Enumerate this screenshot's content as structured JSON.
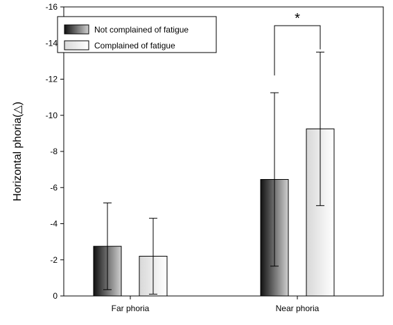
{
  "chart_data": {
    "type": "bar",
    "categories": [
      "Far phoria",
      "Near phoria"
    ],
    "series": [
      {
        "name": "Not complained of fatigue",
        "values": [
          -2.75,
          -6.45
        ],
        "error": [
          2.4,
          4.8
        ],
        "gradient": [
          "#111111",
          "#d0d0d0"
        ]
      },
      {
        "name": "Complained of fatigue",
        "values": [
          -2.2,
          -9.25
        ],
        "error": [
          2.1,
          4.25
        ],
        "gradient": [
          "#d8d8d8",
          "#ffffff"
        ]
      }
    ],
    "ylabel": "Horizontal phoria(△)",
    "ylim": [
      0,
      -16
    ],
    "yticks": [
      0,
      -2,
      -4,
      -6,
      -8,
      -10,
      -12,
      -14,
      -16
    ],
    "legend_position": "top-left",
    "annotations": [
      {
        "text": "*",
        "category": "Near phoria",
        "bracket_value": -15
      }
    ],
    "grid": false
  }
}
